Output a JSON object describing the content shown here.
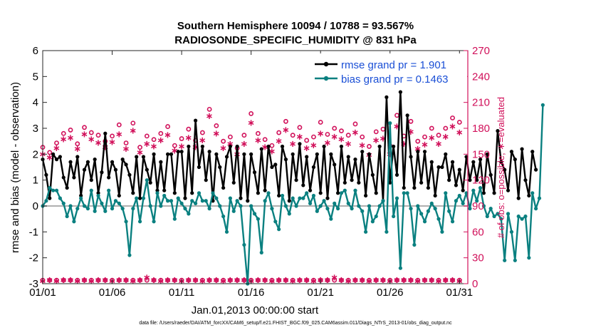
{
  "titles": {
    "line1": "Southern Hemisphere 10094 / 10788 = 93.567%",
    "line2": "RADIOSONDE_SPECIFIC_HUMIDITY @ 831 hPa"
  },
  "footer": "data file: /Users/raeder/DAI/ATM_forcXX/CAM6_setup/f.e21.FHIST_BGC.f09_025.CAM6assim.011/Diags_NTrS_2013-01/obs_diag_output.nc",
  "colors": {
    "rmse": "#000000",
    "bias": "#0a8080",
    "obs": "#d1105a",
    "zero": "#b0b0b0"
  },
  "chart_data": {
    "type": "line",
    "xlabel": "Jan.01,2013 00:00:00 start",
    "ylabel": "rmse and bias (model - observation)",
    "ylabel_right": "# of obs: o=possible; ∗=evaluated",
    "xlim": [
      1,
      31.6
    ],
    "ylim": [
      -3,
      6
    ],
    "ylim_right": [
      0,
      270
    ],
    "x_ticks": [
      1,
      6,
      11,
      16,
      21,
      26,
      31
    ],
    "x_tick_labels": [
      "01/01",
      "01/06",
      "01/11",
      "01/16",
      "01/21",
      "01/26",
      "01/31"
    ],
    "y_ticks": [
      -3,
      -2,
      -1,
      0,
      1,
      2,
      3,
      4,
      5,
      6
    ],
    "y_tick_labels": [
      "-3",
      "-2",
      "-1",
      "0",
      "1",
      "2",
      "3",
      "4",
      "5",
      "6"
    ],
    "y_right_ticks": [
      0,
      30,
      60,
      90,
      120,
      150,
      180,
      210,
      240,
      270
    ],
    "y_right_tick_labels": [
      "0",
      "30",
      "60",
      "90",
      "120",
      "150",
      "180",
      "210",
      "240",
      "270"
    ],
    "legend": {
      "position": "top-right",
      "entries": [
        "rmse grand pr = 1.901",
        "bias grand pr = 0.1463"
      ]
    },
    "series": [
      {
        "name": "rmse",
        "x_start": 1,
        "x_step": 0.25,
        "values": [
          1.8,
          1.2,
          0.3,
          2.0,
          1.8,
          1.9,
          1.1,
          0.7,
          1.7,
          1.1,
          1.9,
          0.4,
          1.4,
          1.7,
          1.0,
          1.8,
          0.5,
          1.3,
          2.8,
          1.1,
          1.7,
          1.4,
          0.4,
          1.8,
          1.6,
          1.2,
          0.5,
          1.9,
          0.3,
          1.9,
          1.4,
          0.9,
          2.0,
          0.6,
          1.7,
          0.6,
          2.0,
          2.0,
          0.5,
          2.1,
          2.1,
          0.3,
          2.3,
          0.5,
          3.3,
          1.5,
          2.3,
          1.0,
          2.1,
          0.2,
          2.0,
          1.5,
          0.7,
          1.9,
          2.3,
          0.9,
          2.3,
          0.3,
          2.0,
          0.2,
          2.0,
          1.3,
          0.5,
          2.2,
          0.6,
          2.3,
          1.5,
          1.6,
          0.4,
          2.3,
          1.8,
          0.2,
          2.0,
          1.0,
          2.4,
          0.8,
          1.9,
          0.6,
          1.5,
          2.0,
          0.5,
          2.3,
          0.3,
          2.0,
          1.6,
          0.5,
          2.3,
          0.9,
          1.9,
          1.0,
          1.8,
          0.9,
          2.1,
          0.4,
          2.0,
          1.2,
          0.5,
          2.3,
          0.2,
          4.2,
          0.9,
          2.3,
          1.2,
          4.4,
          0.7,
          3.5,
          1.9,
          0.7,
          2.1,
          0.9,
          2.1,
          0.7,
          1.7,
          0.4,
          1.5,
          1.5,
          2.0,
          1.0,
          1.7,
          0.8,
          1.4,
          0.6,
          1.9,
          1.0,
          1.7,
          1.0,
          1.8,
          0.5,
          2.0,
          1.2,
          0.5,
          2.9,
          1.7,
          1.4,
          0.6,
          2.1,
          1.8,
          0.3,
          2.2,
          1.0,
          0.4,
          2.1,
          1.4
        ]
      },
      {
        "name": "bias",
        "x_start": 1,
        "x_step": 0.25,
        "values": [
          0.0,
          0.2,
          0.7,
          0.6,
          0.6,
          0.3,
          0.1,
          -0.4,
          0.0,
          -0.6,
          -0.1,
          0.3,
          0.0,
          -0.1,
          0.6,
          -0.2,
          0.4,
          0.1,
          -0.2,
          0.6,
          -0.1,
          0.2,
          0.1,
          -0.1,
          -0.6,
          -1.9,
          -0.1,
          0.3,
          -0.6,
          0.3,
          1.0,
          0.0,
          -0.6,
          0.5,
          0.0,
          0.4,
          0.2,
          0.2,
          -0.5,
          0.3,
          0.1,
          -0.1,
          -0.3,
          0.2,
          0.1,
          0.5,
          0.2,
          0.2,
          -0.1,
          0.5,
          0.3,
          0.0,
          -0.4,
          -1.0,
          0.3,
          -0.2,
          0.2,
          0.0,
          -1.5,
          -3.0,
          0.0,
          -0.3,
          -0.5,
          -1.8,
          0.2,
          0.5,
          -0.1,
          -0.6,
          -0.9,
          0.4,
          0.0,
          -0.3,
          0.3,
          0.0,
          0.3,
          0.3,
          0.5,
          0.1,
          0.4,
          -0.2,
          0.0,
          0.2,
          -0.1,
          -0.5,
          0.1,
          -0.1,
          0.5,
          0.6,
          0.1,
          -0.1,
          0.6,
          0.0,
          -0.2,
          -1.0,
          0.0,
          -0.6,
          -0.4,
          0.0,
          0.2,
          -1.0,
          3.2,
          -0.4,
          0.3,
          -2.4,
          0.5,
          0.5,
          -0.1,
          -1.5,
          0.0,
          -0.3,
          -0.6,
          -0.2,
          0.1,
          -0.1,
          -0.5,
          -1.0,
          0.5,
          -0.2,
          -0.6,
          0.2,
          0.4,
          0.1,
          0.5,
          -0.1,
          0.6,
          0.2,
          0.7,
          0.0,
          -0.4,
          -0.1,
          -0.4,
          -0.3,
          -0.5,
          -2.1,
          -0.3,
          -1.0,
          -2.1,
          -0.4,
          -0.5,
          -0.4,
          -2.0,
          0.5,
          -0.1,
          0.3,
          3.9
        ]
      },
      {
        "name": "obs possible",
        "marker": "o",
        "axis": "right",
        "x_start": 1,
        "x_step": 0.5,
        "values": [
          158,
          152,
          163,
          174,
          178,
          162,
          181,
          175,
          172,
          165,
          171,
          184,
          163,
          186,
          158,
          171,
          167,
          174,
          182,
          160,
          168,
          179,
          166,
          175,
          202,
          183,
          165,
          170,
          157,
          172,
          197,
          174,
          167,
          160,
          175,
          188,
          172,
          181,
          166,
          170,
          187,
          173,
          180,
          177,
          172,
          185,
          170,
          159,
          176,
          179,
          160,
          195,
          171,
          188,
          165,
          170,
          180,
          172,
          180,
          192,
          187
        ]
      },
      {
        "name": "obs evaluated",
        "marker": "*",
        "axis": "right",
        "x_start": 1,
        "x_step": 0.5,
        "values": [
          150,
          146,
          157,
          167,
          169,
          156,
          173,
          167,
          163,
          158,
          164,
          173,
          156,
          177,
          152,
          162,
          159,
          166,
          172,
          154,
          159,
          169,
          158,
          166,
          194,
          174,
          157,
          162,
          150,
          162,
          186,
          166,
          158,
          153,
          165,
          178,
          162,
          170,
          157,
          160,
          174,
          163,
          170,
          167,
          162,
          175,
          160,
          149,
          166,
          168,
          150,
          182,
          162,
          176,
          156,
          161,
          169,
          162,
          170,
          182,
          175
        ]
      },
      {
        "name": "obs possible baseline",
        "marker": "o",
        "axis": "right",
        "x_start": 1,
        "x_step": 0.5,
        "values": [
          4,
          4,
          4,
          4,
          4,
          4,
          4,
          4,
          4,
          4,
          4,
          4,
          4,
          4,
          4,
          4,
          4,
          4,
          4,
          4,
          4,
          4,
          4,
          4,
          4,
          4,
          4,
          4,
          4,
          4,
          4,
          4,
          4,
          4,
          4,
          4,
          4,
          4,
          4,
          4,
          4,
          4,
          4,
          4,
          4,
          4,
          4,
          4,
          4,
          4,
          4,
          4,
          4,
          4,
          4,
          4,
          4,
          4,
          4,
          4,
          4
        ]
      },
      {
        "name": "obs evaluated baseline",
        "marker": "*",
        "axis": "right",
        "x_start": 1,
        "x_step": 0.5,
        "values": [
          3,
          4,
          3,
          4,
          4,
          3,
          4,
          3,
          4,
          4,
          3,
          4,
          4,
          3,
          4,
          7,
          4,
          3,
          4,
          4,
          3,
          4,
          4,
          3,
          4,
          4,
          3,
          4,
          4,
          4,
          3,
          4,
          4,
          3,
          4,
          4,
          3,
          4,
          4,
          3,
          4,
          4,
          7,
          4,
          3,
          4,
          4,
          3,
          4,
          4,
          3,
          4,
          4,
          4,
          3,
          4,
          4,
          3,
          4,
          4,
          3
        ]
      }
    ]
  }
}
